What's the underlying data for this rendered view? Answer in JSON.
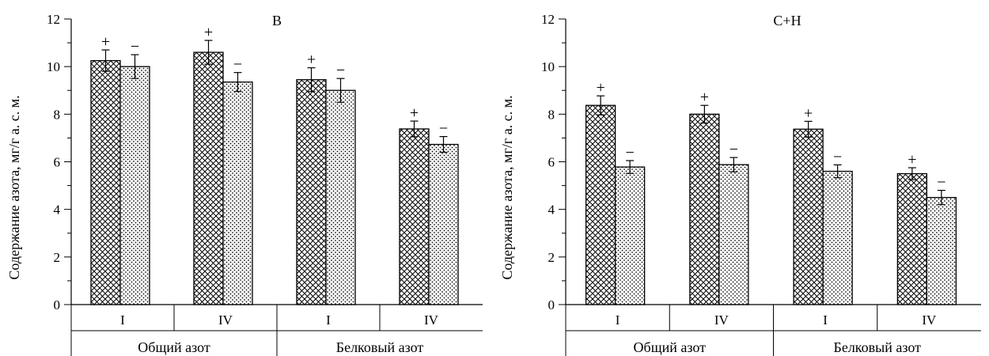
{
  "colors": {
    "ink": "#000000",
    "bar_fill": "#ffffff"
  },
  "chart_data": [
    {
      "type": "bar",
      "title": "B",
      "ylabel": "Содержание азота, мг/г а. с. м.",
      "ylim": [
        0,
        12
      ],
      "yticks": [
        "0",
        "2",
        "4",
        "6",
        "8",
        "10",
        "12"
      ],
      "groups": [
        {
          "label": "Общий азот",
          "categories": [
            "I",
            "IV"
          ]
        },
        {
          "label": "Белковый азот",
          "categories": [
            "I",
            "IV"
          ]
        }
      ],
      "series": [
        {
          "pattern": "crosshatch",
          "marker": "+",
          "values": [
            10.25,
            10.6,
            9.45,
            7.38
          ],
          "errors": [
            0.45,
            0.5,
            0.5,
            0.33
          ]
        },
        {
          "pattern": "dots",
          "marker": "−",
          "values": [
            10.0,
            9.35,
            9.0,
            6.73
          ],
          "errors": [
            0.5,
            0.4,
            0.5,
            0.33
          ]
        }
      ]
    },
    {
      "type": "bar",
      "title": "C+H",
      "ylabel": "Содержание азота, мг/г а. с. м.",
      "ylim": [
        0,
        12
      ],
      "yticks": [
        "0",
        "2",
        "4",
        "6",
        "8",
        "10",
        "12"
      ],
      "groups": [
        {
          "label": "Общий азот",
          "categories": [
            "I",
            "IV"
          ]
        },
        {
          "label": "Белковый азот",
          "categories": [
            "I",
            "IV"
          ]
        }
      ],
      "series": [
        {
          "pattern": "crosshatch",
          "marker": "+",
          "values": [
            8.37,
            8.0,
            7.37,
            5.5
          ],
          "errors": [
            0.4,
            0.37,
            0.33,
            0.25
          ]
        },
        {
          "pattern": "dots",
          "marker": "−",
          "values": [
            5.78,
            5.88,
            5.6,
            4.5
          ],
          "errors": [
            0.27,
            0.3,
            0.27,
            0.3
          ]
        }
      ]
    }
  ]
}
